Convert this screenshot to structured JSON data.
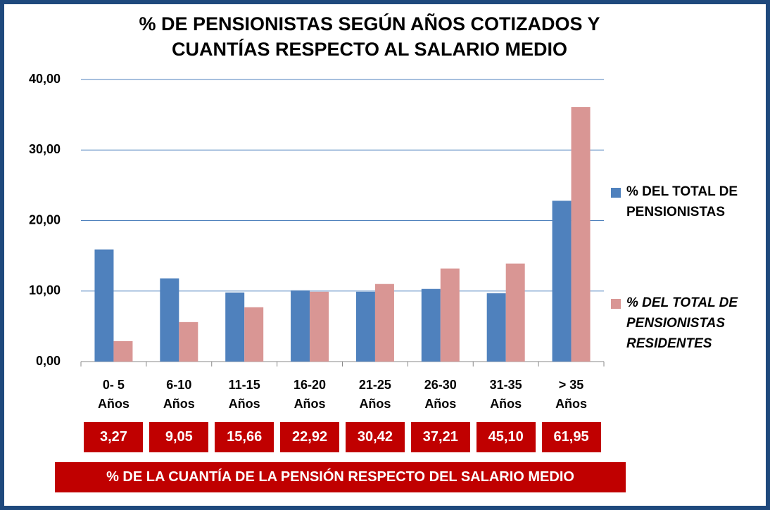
{
  "chart_data": {
    "type": "bar",
    "title": "% DE PENSIONISTAS SEGÚN AÑOS COTIZADOS Y CUANTÍAS RESPECTO AL SALARIO MEDIO",
    "categories": [
      "0- 5 Años",
      "6-10 Años",
      "11-15 Años",
      "16-20 Años",
      "21-25 Años",
      "26-30 Años",
      "31-35 Años",
      "> 35 Años"
    ],
    "series": [
      {
        "name": "% DEL TOTAL DE PENSIONISTAS",
        "color": "#4f81bd",
        "values": [
          15.9,
          11.8,
          9.8,
          10.1,
          9.9,
          10.3,
          9.7,
          22.8
        ]
      },
      {
        "name": "% DEL TOTAL DE PENSIONISTAS RESIDENTES",
        "color": "#d99694",
        "values": [
          2.9,
          5.6,
          7.7,
          9.9,
          11.0,
          13.2,
          13.9,
          36.1
        ]
      }
    ],
    "ylim": [
      0,
      40
    ],
    "yticks": [
      {
        "value": 0,
        "label": "0,00"
      },
      {
        "value": 10,
        "label": "10,00"
      },
      {
        "value": 20,
        "label": "20,00"
      },
      {
        "value": 30,
        "label": "30,00"
      },
      {
        "value": 40,
        "label": "40,00"
      }
    ],
    "grid": true,
    "legend": "right",
    "pension_ratio": {
      "title": "% DE LA CUANTÍA DE LA PENSIÓN RESPECTO DEL SALARIO MEDIO",
      "color": "#c00000",
      "values": [
        3.27,
        9.05,
        15.66,
        22.92,
        30.42,
        37.21,
        45.1,
        61.95
      ],
      "value_labels": [
        "3,27",
        "9,05",
        "15,66",
        "22,92",
        "30,42",
        "37,21",
        "45,10",
        "61,95"
      ]
    }
  }
}
